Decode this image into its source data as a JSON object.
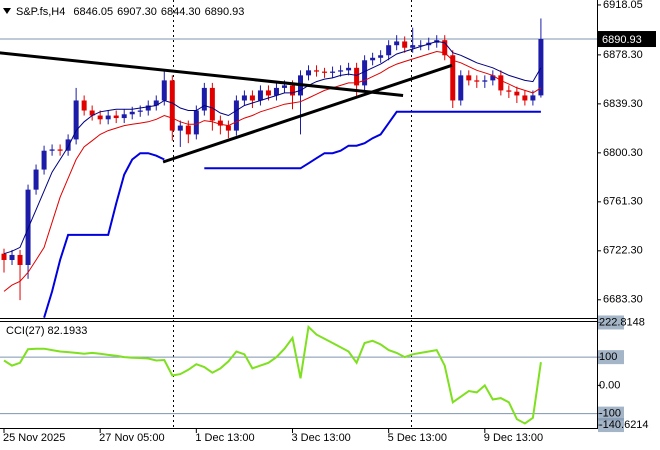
{
  "chart_data": [
    {
      "type": "candlestick",
      "title": "S&P.fs,H4",
      "ohlc_labels": [
        "6846.05",
        "6907.30",
        "6844.30",
        "6890.93"
      ],
      "up_color": "#1c1ca8",
      "down_color": "#e00000",
      "open": [
        6720,
        6715,
        6719,
        6711,
        6771,
        6787,
        6802,
        6803,
        6802,
        6811,
        6842,
        6834,
        6830,
        6827,
        6830,
        6828,
        6831,
        6833,
        6834,
        6838,
        6842,
        6858,
        6818,
        6822,
        6815,
        6834,
        6852,
        6826,
        6822,
        6818,
        6842,
        6846,
        6842,
        6850,
        6846,
        6852,
        6854,
        6846,
        6862,
        6866,
        6865,
        6864,
        6865,
        6866,
        6868,
        6854,
        6874,
        6876,
        6878,
        6886,
        6889,
        6884,
        6886,
        6886,
        6888,
        6890,
        6878,
        6842,
        6862,
        6858,
        6857,
        6858,
        6862,
        6850,
        6849,
        6846,
        6842,
        6846.05
      ],
      "high": [
        6724,
        6723,
        6723,
        6775,
        6791,
        6806,
        6807,
        6807,
        6815,
        6852,
        6846,
        6838,
        6834,
        6834,
        6834,
        6835,
        6837,
        6838,
        6842,
        6846,
        6866,
        6862,
        6826,
        6826,
        6838,
        6856,
        6856,
        6830,
        6826,
        6846,
        6850,
        6850,
        6854,
        6854,
        6856,
        6858,
        6858,
        6866,
        6870,
        6870,
        6868,
        6869,
        6870,
        6872,
        6872,
        6878,
        6880,
        6882,
        6890,
        6894,
        6893,
        6900,
        6890,
        6892,
        6894,
        6894,
        6882,
        6866,
        6866,
        6862,
        6862,
        6866,
        6866,
        6854,
        6853,
        6850,
        6850,
        6907.3
      ],
      "low": [
        6705,
        6711,
        6683,
        6700,
        6767,
        6783,
        6798,
        6798,
        6798,
        6807,
        6830,
        6826,
        6823,
        6823,
        6824,
        6824,
        6827,
        6829,
        6830,
        6834,
        6838,
        6810,
        6805,
        6808,
        6811,
        6830,
        6818,
        6815,
        6812,
        6814,
        6838,
        6836,
        6838,
        6842,
        6842,
        6848,
        6835,
        6815,
        6858,
        6861,
        6860,
        6860,
        6861,
        6862,
        6845,
        6850,
        6870,
        6872,
        6874,
        6882,
        6880,
        6880,
        6882,
        6882,
        6884,
        6874,
        6836,
        6838,
        6854,
        6852,
        6852,
        6854,
        6846,
        6844,
        6840,
        6838,
        6838,
        6844.3
      ],
      "close": [
        6715,
        6719,
        6711,
        6771,
        6787,
        6802,
        6803,
        6802,
        6811,
        6842,
        6834,
        6830,
        6827,
        6830,
        6828,
        6831,
        6833,
        6834,
        6838,
        6842,
        6858,
        6818,
        6822,
        6815,
        6834,
        6852,
        6826,
        6822,
        6818,
        6842,
        6846,
        6842,
        6850,
        6846,
        6852,
        6854,
        6846,
        6862,
        6866,
        6865,
        6864,
        6865,
        6866,
        6868,
        6854,
        6874,
        6876,
        6878,
        6886,
        6889,
        6884,
        6886,
        6886,
        6888,
        6890,
        6878,
        6842,
        6862,
        6858,
        6857,
        6858,
        6862,
        6850,
        6849,
        6846,
        6842,
        6846.05,
        6890.93
      ],
      "overlays": [
        {
          "color": "#000080",
          "width": 1,
          "values": [
            6720,
            6722,
            6725,
            6740,
            6755,
            6770,
            6785,
            6795,
            6805,
            6818,
            6825,
            6830,
            6833,
            6834,
            6835,
            6835,
            6835,
            6836,
            6837,
            6838,
            6842,
            6840,
            6836,
            6834,
            6834,
            6838,
            6836,
            6832,
            6830,
            6834,
            6838,
            6840,
            6842,
            6844,
            6846,
            6848,
            6848,
            6850,
            6854,
            6857,
            6859,
            6860,
            6862,
            6863,
            6862,
            6865,
            6868,
            6871,
            6875,
            6879,
            6881,
            6883,
            6885,
            6887,
            6889,
            6888,
            6880,
            6878,
            6875,
            6872,
            6870,
            6868,
            6865,
            6862,
            6860,
            6858,
            6857,
            6868
          ]
        },
        {
          "color": "#e00000",
          "width": 1,
          "values": [
            6690,
            6695,
            6698,
            6705,
            6715,
            6725,
            6745,
            6765,
            6780,
            6795,
            6805,
            6810,
            6815,
            6818,
            6820,
            6822,
            6823,
            6824,
            6825,
            6827,
            6830,
            6828,
            6825,
            6823,
            6823,
            6826,
            6825,
            6823,
            6822,
            6825,
            6828,
            6830,
            6833,
            6835,
            6837,
            6839,
            6840,
            6841,
            6844,
            6847,
            6850,
            6852,
            6854,
            6856,
            6856,
            6858,
            6861,
            6864,
            6868,
            6871,
            6873,
            6875,
            6877,
            6879,
            6881,
            6880,
            6874,
            6872,
            6869,
            6866,
            6864,
            6862,
            6858,
            6855,
            6852,
            6850,
            6848,
            6852
          ]
        },
        {
          "color": "#0000e0",
          "width": 2,
          "values": [
            null,
            null,
            null,
            null,
            null,
            6669,
            6690,
            6715,
            6735,
            6735,
            6735,
            6735,
            6735,
            6735,
            6760,
            6783,
            6795,
            6800,
            6800,
            6798,
            6795,
            null,
            null,
            null,
            null,
            6788,
            6788,
            6788,
            6788,
            6788,
            6788,
            6788,
            6788,
            6788,
            6788,
            6788,
            6788,
            6788,
            6792,
            6796,
            6800,
            6800,
            6802,
            6806,
            6806,
            6808,
            6812,
            6815,
            6824,
            6833,
            6833,
            6833,
            6833,
            6833,
            6833,
            6833,
            6833,
            6833,
            6833,
            6833,
            6833,
            6833,
            6833,
            6833,
            6833,
            6833,
            6833,
            6833
          ]
        }
      ],
      "trendlines": [
        {
          "color": "#000000",
          "points": [
            [
              -0.6,
              6880
            ],
            [
              49.8,
              6846
            ]
          ]
        },
        {
          "color": "#000000",
          "points": [
            [
              19.85,
              6793
            ],
            [
              55.9,
              6870
            ]
          ]
        }
      ],
      "xlim": [
        -0.5,
        74
      ],
      "ylim": [
        6668.8,
        6922.0
      ],
      "yticks": [
        6918.05,
        {
          "value": 6878.3,
          "label": "6878.30"
        },
        {
          "value": 6839.3,
          "label": "6839.30"
        },
        {
          "value": 6800.3,
          "label": "6800.30"
        },
        {
          "value": 6761.3,
          "label": "6761.30"
        },
        {
          "value": 6722.3,
          "label": "6722.30"
        },
        {
          "value": 6683.3,
          "label": "6683.30"
        }
      ]
    },
    {
      "type": "line",
      "title": "CCI(27) 82.1933",
      "color": "#7ee01e",
      "values": [
        88,
        70,
        80,
        128,
        130,
        130,
        125,
        120,
        118,
        115,
        112,
        115,
        112,
        108,
        105,
        100,
        98,
        97,
        95,
        88,
        90,
        35,
        40,
        55,
        75,
        65,
        45,
        60,
        85,
        120,
        110,
        60,
        70,
        80,
        100,
        130,
        168,
        25,
        207,
        180,
        165,
        150,
        135,
        120,
        80,
        150,
        158,
        145,
        125,
        115,
        100,
        110,
        115,
        120,
        125,
        70,
        -60,
        -40,
        -20,
        -25,
        0,
        -50,
        -45,
        -60,
        -120,
        -135,
        -115,
        82.1933
      ],
      "xlim": [
        -0.5,
        74
      ],
      "ylim": [
        -151,
        228
      ],
      "yticks": [
        222.8148,
        100,
        {
          "value": 0,
          "label": "0.00"
        },
        -100,
        -140.6214
      ],
      "level_lines": [
        100,
        -100
      ],
      "xticks": [
        {
          "value": 0,
          "label": "25 Nov 2025"
        },
        {
          "value": 12,
          "label": "27 Nov 05:00"
        },
        {
          "value": 24,
          "label": "1 Dec 13:00"
        },
        {
          "value": 36,
          "label": "3 Dec 13:00"
        },
        {
          "value": 48,
          "label": "5 Dec 13:00"
        },
        {
          "value": 60,
          "label": "9 Dec 13:00"
        }
      ]
    }
  ]
}
